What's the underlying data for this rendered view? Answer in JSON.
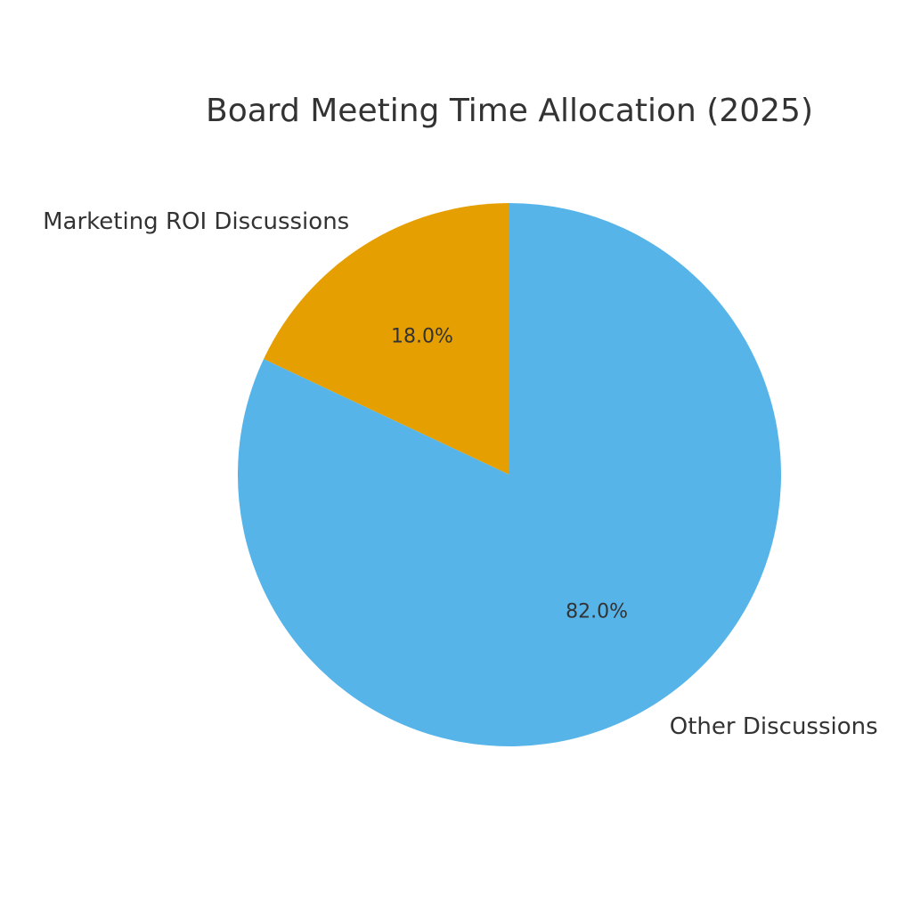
{
  "chart_data": {
    "type": "pie",
    "title": "Board Meeting Time Allocation (2025)",
    "categories": [
      "Marketing ROI Discussions",
      "Other Discussions"
    ],
    "values": [
      18.0,
      82.0
    ],
    "value_labels": [
      "18.0%",
      "82.0%"
    ],
    "colors": [
      "#E69F00",
      "#56B4E9"
    ]
  }
}
